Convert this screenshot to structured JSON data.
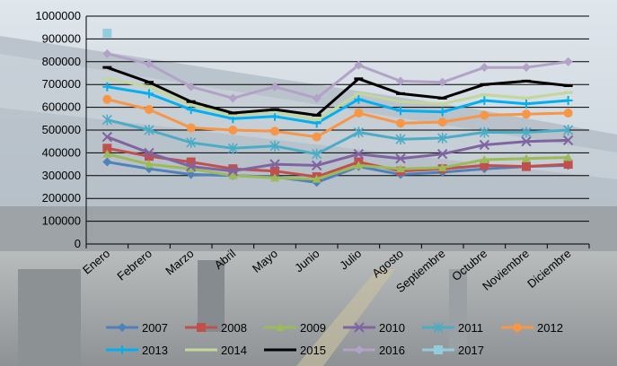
{
  "chart_data": {
    "type": "line",
    "title": "",
    "xlabel": "",
    "ylabel": "",
    "ylim": [
      0,
      1000000
    ],
    "yticks": [
      "0",
      "100000",
      "200000",
      "300000",
      "400000",
      "500000",
      "600000",
      "700000",
      "800000",
      "900000",
      "1000000"
    ],
    "categories": [
      "Enero",
      "Febrero",
      "Marzo",
      "Abril",
      "Mayo",
      "Junio",
      "Julio",
      "Agosto",
      "Septiembre",
      "Octubre",
      "Noviembre",
      "Diciembre"
    ],
    "grid": "horizontal",
    "legend_position": "bottom",
    "series": [
      {
        "name": "2007",
        "color": "#4f81bd",
        "marker": "diamond",
        "values": [
          360000,
          330000,
          305000,
          300000,
          295000,
          270000,
          340000,
          305000,
          315000,
          330000,
          340000,
          345000
        ]
      },
      {
        "name": "2008",
        "color": "#c0504d",
        "marker": "square",
        "values": [
          420000,
          385000,
          360000,
          330000,
          320000,
          295000,
          360000,
          320000,
          330000,
          345000,
          340000,
          350000
        ]
      },
      {
        "name": "2009",
        "color": "#9bbb59",
        "marker": "triangle",
        "values": [
          395000,
          350000,
          330000,
          300000,
          290000,
          285000,
          345000,
          330000,
          335000,
          370000,
          375000,
          380000
        ]
      },
      {
        "name": "2010",
        "color": "#8064a2",
        "marker": "x",
        "values": [
          470000,
          400000,
          340000,
          320000,
          350000,
          345000,
          395000,
          375000,
          395000,
          435000,
          450000,
          455000
        ]
      },
      {
        "name": "2011",
        "color": "#4bacc6",
        "marker": "star",
        "values": [
          545000,
          500000,
          445000,
          420000,
          430000,
          395000,
          490000,
          460000,
          465000,
          490000,
          490000,
          500000
        ]
      },
      {
        "name": "2012",
        "color": "#f79646",
        "marker": "circle",
        "values": [
          635000,
          590000,
          510000,
          500000,
          495000,
          470000,
          575000,
          530000,
          535000,
          565000,
          570000,
          575000
        ]
      },
      {
        "name": "2013",
        "color": "#00b0f0",
        "marker": "plus",
        "values": [
          690000,
          660000,
          590000,
          550000,
          560000,
          530000,
          635000,
          585000,
          580000,
          630000,
          615000,
          630000
        ]
      },
      {
        "name": "2014",
        "color": "#c3d69b",
        "marker": "dash",
        "values": [
          725000,
          690000,
          610000,
          565000,
          580000,
          545000,
          660000,
          625000,
          615000,
          655000,
          640000,
          665000
        ]
      },
      {
        "name": "2015",
        "color": "#000000",
        "marker": "dash",
        "values": [
          775000,
          710000,
          625000,
          575000,
          590000,
          565000,
          725000,
          660000,
          640000,
          700000,
          715000,
          695000
        ]
      },
      {
        "name": "2016",
        "color": "#b3a2c7",
        "marker": "diamond",
        "values": [
          835000,
          790000,
          690000,
          640000,
          690000,
          640000,
          785000,
          715000,
          710000,
          775000,
          775000,
          800000
        ]
      },
      {
        "name": "2017",
        "color": "#93cddd",
        "marker": "square",
        "values": [
          925000,
          null,
          null,
          null,
          null,
          null,
          null,
          null,
          null,
          null,
          null,
          null
        ]
      }
    ]
  }
}
